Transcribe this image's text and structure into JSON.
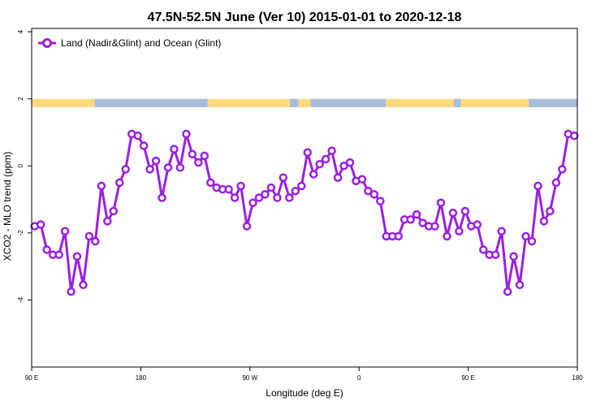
{
  "chart_data": {
    "type": "line",
    "title": "47.5N-52.5N June (Ver 10)   2015-01-01 to 2020-12-18",
    "xlabel": "Longitude (deg E)",
    "ylabel": "XCO2 - MLO trend (ppm)",
    "xlim": [
      90,
      540
    ],
    "ylim": [
      -6,
      4.1
    ],
    "x_ticks": [
      {
        "value": 90,
        "label": "90 E"
      },
      {
        "value": 180,
        "label": "180"
      },
      {
        "value": 270,
        "label": "90 W"
      },
      {
        "value": 360,
        "label": "0"
      },
      {
        "value": 450,
        "label": "90 E"
      },
      {
        "value": 540,
        "label": "180"
      }
    ],
    "y_ticks": [
      {
        "value": -4,
        "label": "-4"
      },
      {
        "value": -2,
        "label": "-2"
      },
      {
        "value": 0,
        "label": "0"
      },
      {
        "value": 2,
        "label": "2"
      },
      {
        "value": 4,
        "label": "4"
      }
    ],
    "legend": {
      "position": "top-left"
    },
    "grid": false,
    "land_ocean_band": {
      "y_range": [
        1.75,
        2.0
      ],
      "land_color": "#ffd980",
      "ocean_color": "#a8bddb",
      "segments": [
        {
          "type": "land",
          "from": 90,
          "to": 142
        },
        {
          "type": "ocean",
          "from": 142,
          "to": 235
        },
        {
          "type": "land",
          "from": 235,
          "to": 303
        },
        {
          "type": "ocean",
          "from": 303,
          "to": 310
        },
        {
          "type": "land",
          "from": 310,
          "to": 320
        },
        {
          "type": "ocean",
          "from": 320,
          "to": 382
        },
        {
          "type": "land",
          "from": 382,
          "to": 438
        },
        {
          "type": "ocean",
          "from": 438,
          "to": 444
        },
        {
          "type": "land",
          "from": 444,
          "to": 500
        },
        {
          "type": "ocean",
          "from": 500,
          "to": 540
        }
      ]
    },
    "series": [
      {
        "name": "Land (Nadir&Glint) and Ocean (Glint)",
        "color": "#9b20e0",
        "x": [
          92.5,
          97.5,
          102.5,
          107.5,
          112.5,
          117.5,
          122.5,
          127.5,
          132.5,
          137.5,
          142.5,
          147.5,
          152.5,
          157.5,
          162.5,
          167.5,
          172.5,
          177.5,
          182.5,
          187.5,
          192.5,
          197.5,
          202.5,
          207.5,
          212.5,
          217.5,
          222.5,
          227.5,
          232.5,
          237.5,
          242.5,
          247.5,
          252.5,
          257.5,
          262.5,
          267.5,
          272.5,
          277.5,
          282.5,
          287.5,
          292.5,
          297.5,
          302.5,
          307.5,
          312.5,
          317.5,
          322.5,
          327.5,
          332.5,
          337.5,
          342.5,
          347.5,
          352.5,
          357.5,
          362.5,
          367.5,
          372.5,
          377.5,
          382.5,
          387.5,
          392.5,
          397.5,
          402.5,
          407.5,
          412.5,
          417.5,
          422.5,
          427.5,
          432.5,
          437.5,
          442.5,
          447.5,
          452.5,
          457.5,
          462.5,
          467.5,
          472.5,
          477.5,
          482.5,
          487.5,
          492.5,
          497.5,
          502.5,
          507.5,
          512.5,
          517.5,
          522.5,
          527.5,
          532.5,
          537.5
        ],
        "values": [
          -1.8,
          -1.75,
          -2.5,
          -2.65,
          -2.65,
          -1.95,
          -3.75,
          -2.7,
          -3.55,
          -2.1,
          -2.25,
          -0.6,
          -1.65,
          -1.35,
          -0.5,
          -0.1,
          0.95,
          0.9,
          0.6,
          -0.1,
          0.15,
          -0.95,
          -0.05,
          0.5,
          -0.05,
          0.95,
          0.35,
          0.1,
          0.3,
          -0.5,
          -0.65,
          -0.7,
          -0.7,
          -0.95,
          -0.6,
          -1.8,
          -1.1,
          -0.95,
          -0.85,
          -0.65,
          -0.95,
          -0.35,
          -0.95,
          -0.75,
          -0.6,
          0.4,
          -0.25,
          0.05,
          0.2,
          0.45,
          -0.35,
          0.0,
          0.1,
          -0.45,
          -0.4,
          -0.75,
          -0.85,
          -1.05,
          -2.1,
          -2.1,
          -2.1,
          -1.6,
          -1.6,
          -1.45,
          -1.7,
          -1.8,
          -1.8,
          -1.1,
          -2.1,
          -1.4,
          -1.95,
          -1.35,
          -1.8,
          -1.75,
          -2.5,
          -2.65,
          -2.65,
          -1.95,
          -3.75,
          -2.7,
          -3.55,
          -2.1,
          -2.25,
          -0.6,
          -1.65,
          -1.35,
          -0.5,
          -0.1,
          0.95,
          0.9
        ]
      }
    ]
  }
}
